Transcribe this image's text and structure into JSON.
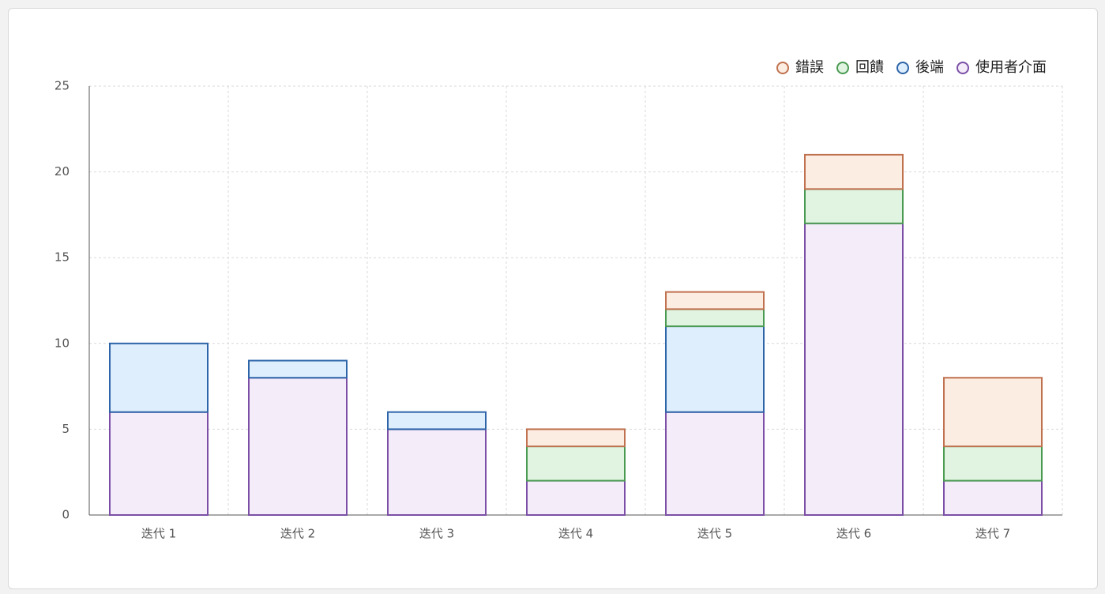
{
  "chart_data": {
    "type": "stacked-bar",
    "categories": [
      "迭代 1",
      "迭代 2",
      "迭代 3",
      "迭代 4",
      "迭代 5",
      "迭代 6",
      "迭代 7"
    ],
    "series": [
      {
        "name": "錯誤",
        "color": "#c0714f",
        "fill": "#fcede3",
        "values": [
          0,
          0,
          0,
          1,
          1,
          2,
          4
        ]
      },
      {
        "name": "回饋",
        "color": "#4a9a52",
        "fill": "#e0f4e1",
        "values": [
          0,
          0,
          0,
          2,
          1,
          2,
          2
        ]
      },
      {
        "name": "後端",
        "color": "#2e64a8",
        "fill": "#deeefc",
        "values": [
          4,
          1,
          1,
          0,
          5,
          0,
          0
        ]
      },
      {
        "name": "使用者介面",
        "color": "#7b4fa6",
        "fill": "#f5ecfa",
        "values": [
          6,
          8,
          5,
          2,
          6,
          17,
          2
        ]
      }
    ],
    "ylim": [
      0,
      25
    ],
    "yticks": [
      0,
      5,
      10,
      15,
      20,
      25
    ],
    "grid": true,
    "legend": "top-right"
  }
}
